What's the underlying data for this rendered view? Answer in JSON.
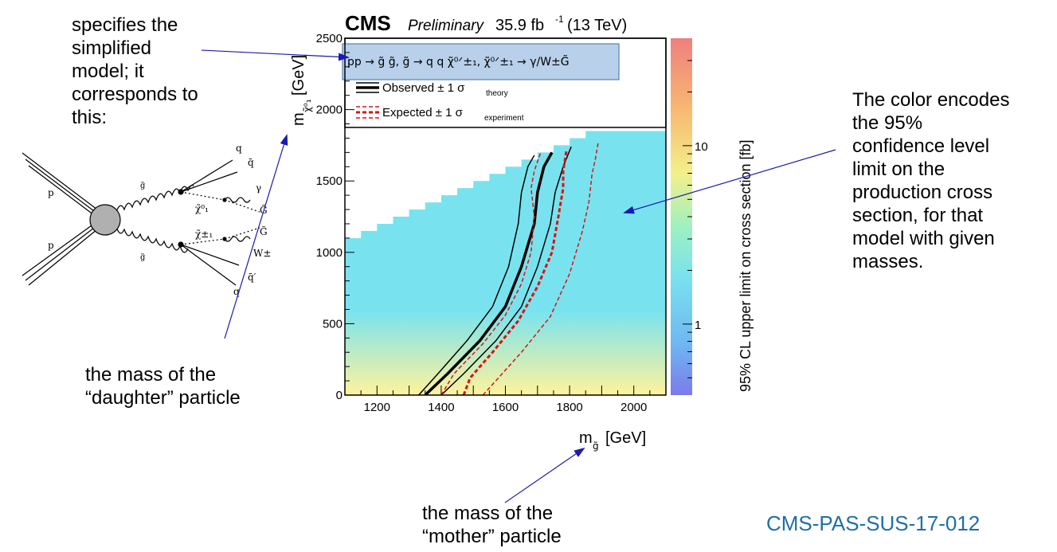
{
  "annotations": {
    "model_note": "specifies the\nsimplified\nmodel; it\ncorresponds to\nthis:",
    "daughter_note": "the mass of the\n“daughter” particle",
    "color_note": "The color encodes\nthe 95%\nconfidence level\nlimit on the\nproduction cross\nsection, for that\nmodel with given\nmasses.",
    "mother_note": "the mass of the\n“mother” particle",
    "reference": "CMS-PAS-SUS-17-012"
  },
  "diagram_labels": {
    "p_top": "p",
    "p_bottom": "p",
    "g_top": "g̃",
    "g_bottom": "g̃",
    "q1": "q",
    "qbar1": "q̄",
    "chi0": "χ̃⁰₁",
    "chipm": "χ̃±₁",
    "gamma": "γ",
    "G1": "G̃",
    "G2": "G̃",
    "W": "W±",
    "qbarprime": "q̄′",
    "q2": "q"
  },
  "colors": {
    "arrow": "#1a1ab0",
    "observed": "#000000",
    "expected": "#e01010",
    "highlight": "#b8d0ea"
  },
  "chart_data": {
    "type": "heatmap",
    "header": {
      "cms": "CMS",
      "preliminary": "Preliminary",
      "lumi": "35.9 fb",
      "lumi_exp": "-1",
      "energy": "(13 TeV)"
    },
    "model": "pp → g̃ g̃, g̃ → q q χ̃⁰ᐟ±₁, χ̃⁰ᐟ±₁ → γ/W±G̃",
    "legend": [
      {
        "label": "Observed ± 1 σ",
        "sub": "theory",
        "style": "observed"
      },
      {
        "label": "Expected ± 1 σ",
        "sub": "experiment",
        "style": "expected"
      }
    ],
    "xlabel": "m",
    "xlabel_sub": "g̃",
    "xlabel_unit": "[GeV]",
    "ylabel": "m",
    "ylabel_sub": "χ̃⁰₁",
    "ylabel_unit": "[GeV]",
    "zlabel": "95% CL upper limit on cross section [fb]",
    "xlim": [
      1100,
      2100
    ],
    "ylim": [
      0,
      2500
    ],
    "zscale": "log",
    "xticks": [
      1200,
      1400,
      1600,
      1800,
      2000
    ],
    "yticks": [
      0,
      500,
      1000,
      1500,
      2000,
      2500
    ],
    "zticks": [
      {
        "value": 1,
        "label": "1"
      },
      {
        "value": 10,
        "label": "10"
      }
    ],
    "zlim": [
      0.4,
      40
    ],
    "fill_color_top": "#78e3ef",
    "fill_color_bottom": "#fff39c",
    "upper_edge": [
      [
        1100,
        1100
      ],
      [
        1150,
        1150
      ],
      [
        1200,
        1200
      ],
      [
        1250,
        1250
      ],
      [
        1300,
        1300
      ],
      [
        1350,
        1350
      ],
      [
        1400,
        1400
      ],
      [
        1450,
        1450
      ],
      [
        1500,
        1500
      ],
      [
        1550,
        1550
      ],
      [
        1600,
        1600
      ],
      [
        1650,
        1650
      ],
      [
        1700,
        1700
      ],
      [
        1750,
        1750
      ],
      [
        1800,
        1800
      ],
      [
        1850,
        1850
      ],
      [
        1900,
        1850
      ],
      [
        2100,
        1850
      ]
    ],
    "curves": [
      {
        "name": "observed",
        "points": [
          [
            1350,
            0
          ],
          [
            1420,
            150
          ],
          [
            1520,
            380
          ],
          [
            1600,
            620
          ],
          [
            1650,
            900
          ],
          [
            1690,
            1200
          ],
          [
            1700,
            1420
          ],
          [
            1720,
            1600
          ],
          [
            1745,
            1700
          ]
        ]
      },
      {
        "name": "observed_minus",
        "points": [
          [
            1330,
            0
          ],
          [
            1390,
            150
          ],
          [
            1480,
            380
          ],
          [
            1560,
            620
          ],
          [
            1610,
            900
          ],
          [
            1640,
            1200
          ],
          [
            1650,
            1420
          ],
          [
            1670,
            1600
          ],
          [
            1690,
            1680
          ]
        ]
      },
      {
        "name": "observed_plus",
        "points": [
          [
            1400,
            0
          ],
          [
            1470,
            150
          ],
          [
            1570,
            380
          ],
          [
            1650,
            620
          ],
          [
            1700,
            900
          ],
          [
            1740,
            1200
          ],
          [
            1755,
            1420
          ],
          [
            1780,
            1600
          ],
          [
            1805,
            1740
          ]
        ]
      },
      {
        "name": "expected",
        "points": [
          [
            1470,
            0
          ],
          [
            1490,
            120
          ],
          [
            1560,
            300
          ],
          [
            1640,
            520
          ],
          [
            1700,
            760
          ],
          [
            1745,
            1000
          ],
          [
            1765,
            1250
          ],
          [
            1780,
            1450
          ],
          [
            1780,
            1570
          ],
          [
            1790,
            1710
          ]
        ]
      },
      {
        "name": "expected_minus",
        "points": [
          [
            1400,
            0
          ],
          [
            1440,
            150
          ],
          [
            1530,
            360
          ],
          [
            1600,
            560
          ],
          [
            1650,
            780
          ],
          [
            1680,
            1000
          ],
          [
            1690,
            1250
          ],
          [
            1680,
            1450
          ],
          [
            1690,
            1570
          ],
          [
            1710,
            1700
          ]
        ]
      },
      {
        "name": "expected_plus",
        "points": [
          [
            1530,
            0
          ],
          [
            1570,
            100
          ],
          [
            1650,
            300
          ],
          [
            1740,
            550
          ],
          [
            1800,
            850
          ],
          [
            1840,
            1150
          ],
          [
            1860,
            1350
          ],
          [
            1870,
            1550
          ],
          [
            1880,
            1650
          ],
          [
            1890,
            1780
          ]
        ]
      }
    ]
  }
}
